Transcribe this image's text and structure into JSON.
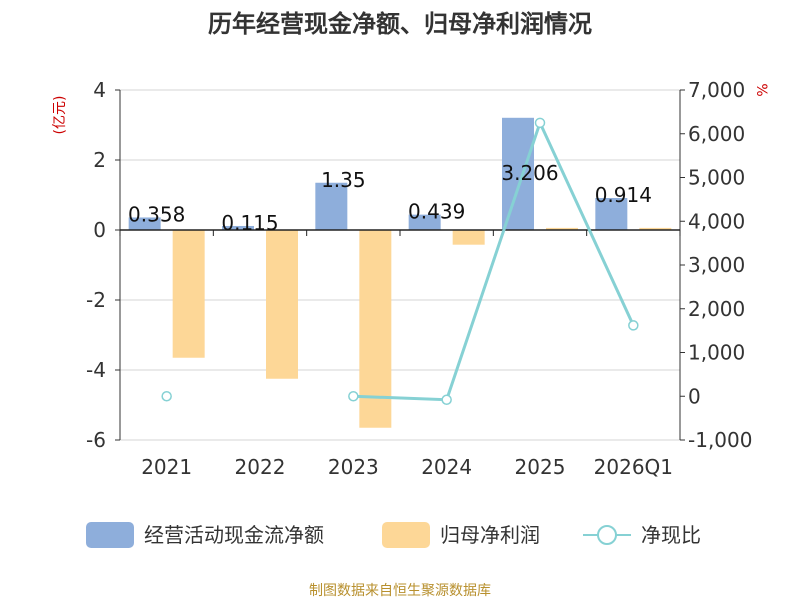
{
  "chart_data": {
    "type": "bar+line",
    "title": "历年经营现金净额、归母净利润情况",
    "left_axis_label": "(亿元)",
    "right_axis_label": "%",
    "categories": [
      "2021",
      "2022",
      "2023",
      "2024",
      "2025",
      "2026Q1"
    ],
    "left_ylim": [
      -6,
      4
    ],
    "left_ticks": [
      4,
      2,
      0,
      -2,
      -4,
      -6
    ],
    "left_tick_labels": [
      "4",
      "2",
      "0",
      "-2",
      "-4",
      "-6"
    ],
    "right_ylim": [
      -1000,
      7000
    ],
    "right_ticks": [
      7000,
      6000,
      5000,
      4000,
      3000,
      2000,
      1000,
      0,
      -1000
    ],
    "right_tick_labels": [
      "7,000",
      "6,000",
      "5,000",
      "4,000",
      "3,000",
      "2,000",
      "1,000",
      "0",
      "-1,000"
    ],
    "series": [
      {
        "name": "经营活动现金流净额",
        "kind": "bar",
        "axis": "left",
        "color": "#8eaedb",
        "values": [
          0.358,
          0.115,
          1.35,
          0.439,
          3.206,
          0.914
        ],
        "labels": [
          "0.358",
          "0.115",
          "1.35",
          "0.439",
          "3.206",
          "0.914"
        ]
      },
      {
        "name": "归母净利润",
        "kind": "bar",
        "axis": "left",
        "color": "#fdd797",
        "values": [
          -3.65,
          -4.25,
          -5.65,
          -0.42,
          0.06,
          0.06
        ]
      },
      {
        "name": "净现比",
        "kind": "line",
        "axis": "right",
        "color": "#86d1d4",
        "values": [
          0,
          null,
          0,
          -80,
          6250,
          1620
        ]
      }
    ],
    "legend_position": "bottom"
  },
  "footer": {
    "source": "制图数据来自恒生聚源数据库"
  }
}
